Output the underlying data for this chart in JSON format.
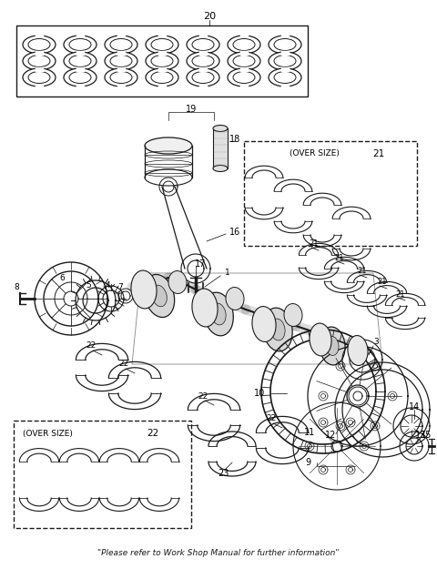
{
  "footer_text": "\"Please refer to Work Shop Manual for further information\"",
  "background_color": "#ffffff",
  "line_color": "#1a1a1a",
  "fig_width": 4.8,
  "fig_height": 6.25,
  "dpi": 100
}
